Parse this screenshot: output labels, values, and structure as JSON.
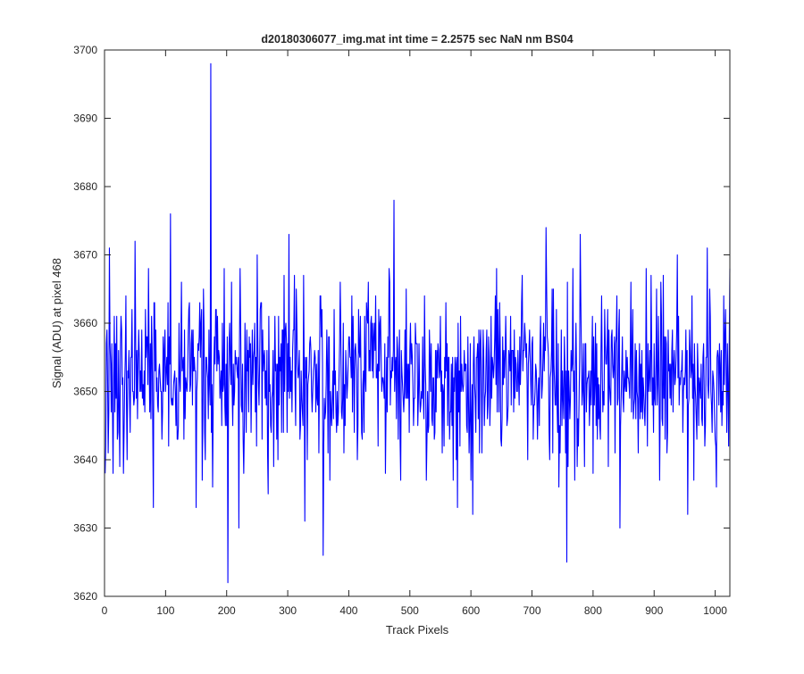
{
  "chart_data": {
    "type": "line",
    "title": "d20180306077_img.mat int time = 2.2575 sec  NaN nm BS04",
    "xlabel": "Track Pixels",
    "ylabel": "Signal (ADU) at pixel 468",
    "xlim": [
      0,
      1024
    ],
    "ylim": [
      3620,
      3700
    ],
    "xticks": [
      0,
      100,
      200,
      300,
      400,
      500,
      600,
      700,
      800,
      900,
      1000
    ],
    "yticks": [
      3620,
      3630,
      3640,
      3650,
      3660,
      3670,
      3680,
      3690,
      3700
    ],
    "grid": false,
    "line_color": "#0000ff",
    "axis_color": "#262626",
    "series": [
      {
        "sampling": "one value per track pixel, x = 1..1024; anchor values are read from the plot, intermediate pixels follow the same noise band (~3640-3665)",
        "n_points": 1024,
        "noise_mean": 3652.5,
        "anchor_points": [
          {
            "x": 1,
            "y": 3638
          },
          {
            "x": 3,
            "y": 3657
          },
          {
            "x": 8,
            "y": 3671
          },
          {
            "x": 14,
            "y": 3638
          },
          {
            "x": 50,
            "y": 3672
          },
          {
            "x": 80,
            "y": 3633
          },
          {
            "x": 108,
            "y": 3676
          },
          {
            "x": 150,
            "y": 3633
          },
          {
            "x": 174,
            "y": 3698
          },
          {
            "x": 177,
            "y": 3636
          },
          {
            "x": 202,
            "y": 3622
          },
          {
            "x": 220,
            "y": 3630
          },
          {
            "x": 250,
            "y": 3670
          },
          {
            "x": 268,
            "y": 3635
          },
          {
            "x": 302,
            "y": 3673
          },
          {
            "x": 328,
            "y": 3631
          },
          {
            "x": 358,
            "y": 3626
          },
          {
            "x": 474,
            "y": 3678
          },
          {
            "x": 578,
            "y": 3633
          },
          {
            "x": 603,
            "y": 3632
          },
          {
            "x": 723,
            "y": 3674
          },
          {
            "x": 744,
            "y": 3636
          },
          {
            "x": 757,
            "y": 3625
          },
          {
            "x": 779,
            "y": 3673
          },
          {
            "x": 844,
            "y": 3630
          },
          {
            "x": 918,
            "y": 3643
          },
          {
            "x": 938,
            "y": 3670
          },
          {
            "x": 955,
            "y": 3632
          },
          {
            "x": 987,
            "y": 3671
          },
          {
            "x": 1002,
            "y": 3636
          },
          {
            "x": 1022,
            "y": 3642
          }
        ]
      }
    ]
  }
}
